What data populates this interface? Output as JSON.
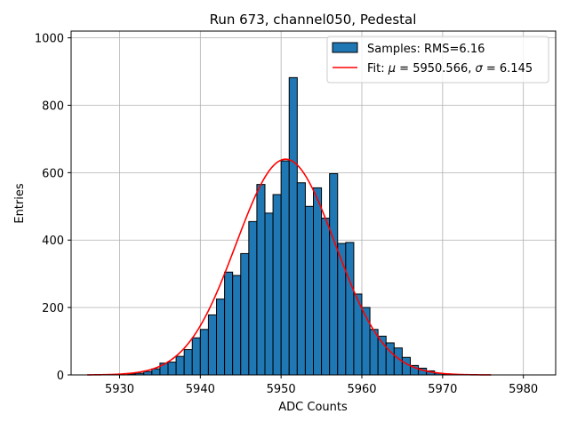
{
  "chart_data": {
    "type": "bar",
    "title": "Run 673, channel050, Pedestal",
    "xlabel": "ADC Counts",
    "ylabel": "Entries",
    "xlim": [
      5924,
      5984
    ],
    "ylim": [
      0,
      1020
    ],
    "xticks": [
      5930,
      5940,
      5950,
      5960,
      5970,
      5980
    ],
    "yticks": [
      0,
      200,
      400,
      600,
      800,
      1000
    ],
    "grid": true,
    "legend_position": "top-right",
    "histogram": {
      "name": "Samples: RMS=6.16",
      "color": "#1f77b4",
      "edgecolor": "#000000",
      "bin_edges": [
        5931,
        5932,
        5933,
        5934,
        5935,
        5936,
        5937,
        5938,
        5939,
        5940,
        5941,
        5942,
        5943,
        5944,
        5945,
        5946,
        5947,
        5948,
        5949,
        5950,
        5951,
        5952,
        5953,
        5954,
        5955,
        5956,
        5957,
        5958,
        5959,
        5960,
        5961,
        5962,
        5963,
        5964,
        5965,
        5966,
        5967,
        5968,
        5969,
        5970,
        5971
      ],
      "counts": [
        3,
        5,
        10,
        18,
        35,
        38,
        55,
        75,
        110,
        135,
        178,
        225,
        305,
        295,
        360,
        455,
        565,
        480,
        535,
        635,
        882,
        570,
        500,
        555,
        465,
        597,
        390,
        393,
        240,
        200,
        135,
        115,
        95,
        80,
        52,
        28,
        20,
        12,
        5,
        3
      ]
    },
    "fit": {
      "name": "Fit: μ = 5950.566, σ = 6.145",
      "name_prefix": "Fit: ",
      "name_mu": "μ",
      "name_middle": " = 5950.566, ",
      "name_sigma": "σ",
      "name_suffix": " = 6.145",
      "color": "#ff0000",
      "mu": 5950.566,
      "sigma": 6.145,
      "amplitude": 640,
      "x_range": [
        5926,
        5976
      ]
    }
  }
}
